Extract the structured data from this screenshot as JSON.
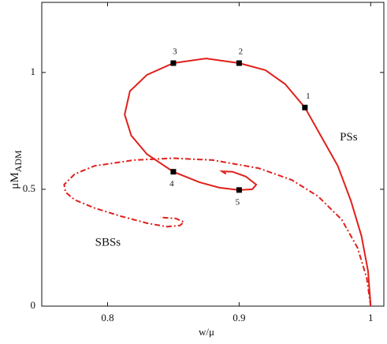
{
  "chart_data": {
    "type": "line",
    "x_label": "w/μ",
    "y_label": "μM",
    "y_label_sub": "ADM",
    "xlim": [
      0.75,
      1.01
    ],
    "ylim": [
      0,
      1.3
    ],
    "xticks": [
      0.8,
      0.9,
      1
    ],
    "yticks": [
      0,
      0.5,
      1
    ],
    "series": [
      {
        "name": "PSs",
        "color": "#e0201c",
        "style": "solid",
        "x": [
          1.0,
          0.998,
          0.993,
          0.985,
          0.975,
          0.963,
          0.95,
          0.935,
          0.92,
          0.9,
          0.875,
          0.85,
          0.83,
          0.817,
          0.813,
          0.818,
          0.83,
          0.85,
          0.87,
          0.885,
          0.9,
          0.91,
          0.913,
          0.905,
          0.895,
          0.887,
          0.89
        ],
        "values": [
          0,
          0.15,
          0.3,
          0.45,
          0.6,
          0.72,
          0.85,
          0.95,
          1.01,
          1.04,
          1.06,
          1.04,
          0.99,
          0.92,
          0.82,
          0.73,
          0.65,
          0.575,
          0.53,
          0.507,
          0.497,
          0.5,
          0.52,
          0.555,
          0.575,
          0.577,
          0.566
        ]
      },
      {
        "name": "SBSs",
        "color": "#e0201c",
        "style": "dashdot",
        "x": [
          1.0,
          0.997,
          0.99,
          0.978,
          0.96,
          0.94,
          0.915,
          0.88,
          0.85,
          0.82,
          0.79,
          0.775,
          0.767,
          0.768,
          0.775,
          0.79,
          0.81,
          0.83,
          0.845,
          0.855,
          0.858,
          0.852,
          0.84
        ],
        "values": [
          0,
          0.12,
          0.25,
          0.37,
          0.47,
          0.54,
          0.59,
          0.625,
          0.633,
          0.625,
          0.6,
          0.565,
          0.52,
          0.488,
          0.455,
          0.42,
          0.385,
          0.355,
          0.34,
          0.345,
          0.36,
          0.375,
          0.38
        ]
      }
    ],
    "label_positions": [
      [
        0.99,
        0.72
      ],
      [
        0.81,
        0.27
      ]
    ],
    "points": [
      {
        "label": "1",
        "x": 0.95,
        "y": 0.85
      },
      {
        "label": "2",
        "x": 0.9,
        "y": 1.04
      },
      {
        "label": "3",
        "x": 0.85,
        "y": 1.04
      },
      {
        "label": "4",
        "x": 0.85,
        "y": 0.575
      },
      {
        "label": "5",
        "x": 0.9,
        "y": 0.497
      }
    ]
  }
}
